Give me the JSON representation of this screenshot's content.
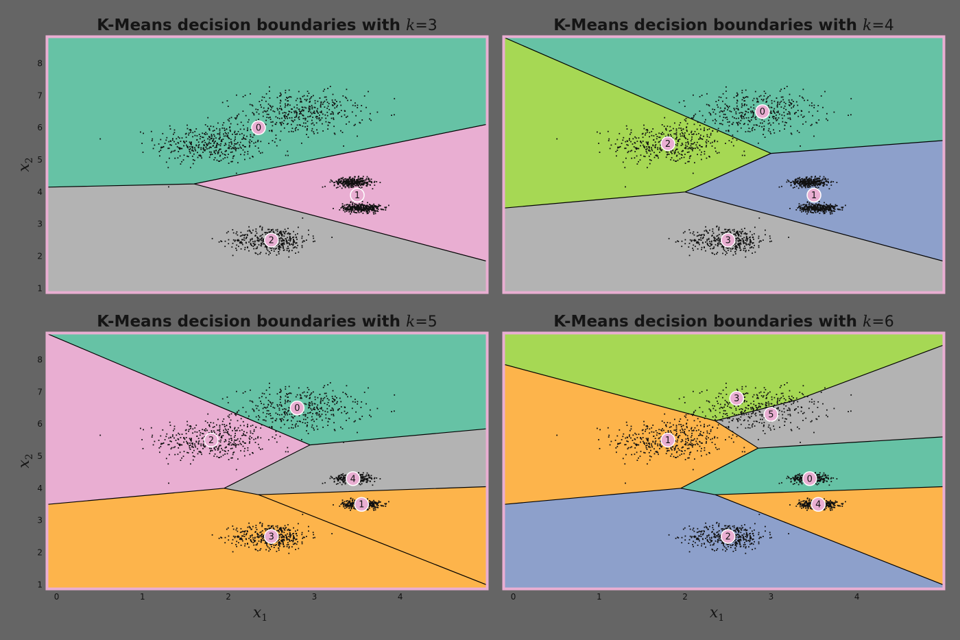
{
  "figure": {
    "background": "#656565",
    "frame_color": "#e9aed2",
    "boundary_color": "#000000",
    "point_color": "#111111"
  },
  "chart_data": [
    {
      "type": "scatter",
      "subtype": "voronoi-decision-boundaries",
      "title": "K-Means decision boundaries with",
      "k_symbol": "k",
      "k_value": "= 3",
      "xlim": [
        -0.1,
        5.0
      ],
      "ylim": [
        0.9,
        8.8
      ],
      "xlabel": "",
      "ylabel_base": "x",
      "ylabel_sub": "2",
      "xticks": [],
      "yticks": [
        "1",
        "2",
        "3",
        "4",
        "5",
        "6",
        "7",
        "8"
      ],
      "centroids": [
        {
          "label": "0",
          "x": 2.35,
          "y": 6.0,
          "color": "#66c2a5"
        },
        {
          "label": "1",
          "x": 3.5,
          "y": 3.9,
          "color": "#e9aed2"
        },
        {
          "label": "2",
          "x": 2.5,
          "y": 2.5,
          "color": "#b3b3b3"
        }
      ]
    },
    {
      "type": "scatter",
      "subtype": "voronoi-decision-boundaries",
      "title": "K-Means decision boundaries with",
      "k_symbol": "k",
      "k_value": "= 4",
      "xlim": [
        -0.1,
        5.0
      ],
      "ylim": [
        0.9,
        8.8
      ],
      "xlabel": "",
      "ylabel_base": "",
      "ylabel_sub": "",
      "xticks": [],
      "yticks": [],
      "centroids": [
        {
          "label": "0",
          "x": 2.9,
          "y": 6.5,
          "color": "#66c2a5"
        },
        {
          "label": "1",
          "x": 3.5,
          "y": 3.9,
          "color": "#8da0cb"
        },
        {
          "label": "2",
          "x": 1.8,
          "y": 5.5,
          "color": "#a6d854"
        },
        {
          "label": "3",
          "x": 2.5,
          "y": 2.5,
          "color": "#b3b3b3"
        }
      ]
    },
    {
      "type": "scatter",
      "subtype": "voronoi-decision-boundaries",
      "title": "K-Means decision boundaries with",
      "k_symbol": "k",
      "k_value": "= 5",
      "xlim": [
        -0.1,
        5.0
      ],
      "ylim": [
        0.9,
        8.8
      ],
      "xlabel_base": "x",
      "xlabel_sub": "1",
      "ylabel_base": "x",
      "ylabel_sub": "2",
      "xticks": [
        "0",
        "1",
        "2",
        "3",
        "4"
      ],
      "yticks": [
        "1",
        "2",
        "3",
        "4",
        "5",
        "6",
        "7",
        "8"
      ],
      "centroids": [
        {
          "label": "0",
          "x": 2.8,
          "y": 6.5,
          "color": "#66c2a5"
        },
        {
          "label": "1",
          "x": 3.55,
          "y": 3.5,
          "color": "#fdb44b"
        },
        {
          "label": "2",
          "x": 1.8,
          "y": 5.5,
          "color": "#e9aed2"
        },
        {
          "label": "3",
          "x": 2.5,
          "y": 2.5,
          "color": "#fdb44b"
        },
        {
          "label": "4",
          "x": 3.45,
          "y": 4.3,
          "color": "#b3b3b3"
        }
      ]
    },
    {
      "type": "scatter",
      "subtype": "voronoi-decision-boundaries",
      "title": "K-Means decision boundaries with",
      "k_symbol": "k",
      "k_value": "= 6",
      "xlim": [
        -0.1,
        5.0
      ],
      "ylim": [
        0.9,
        8.8
      ],
      "xlabel_base": "x",
      "xlabel_sub": "1",
      "ylabel_base": "",
      "ylabel_sub": "",
      "xticks": [
        "0",
        "1",
        "2",
        "3",
        "4"
      ],
      "yticks": [],
      "centroids": [
        {
          "label": "0",
          "x": 3.45,
          "y": 4.3,
          "color": "#66c2a5"
        },
        {
          "label": "1",
          "x": 1.8,
          "y": 5.5,
          "color": "#fdb44b"
        },
        {
          "label": "2",
          "x": 2.5,
          "y": 2.5,
          "color": "#8da0cb"
        },
        {
          "label": "3",
          "x": 2.6,
          "y": 6.8,
          "color": "#a6d854"
        },
        {
          "label": "4",
          "x": 3.55,
          "y": 3.5,
          "color": "#fdb44b"
        },
        {
          "label": "5",
          "x": 3.0,
          "y": 6.3,
          "color": "#b3b3b3"
        }
      ]
    }
  ],
  "blobs": [
    {
      "cx": 1.8,
      "cy": 5.5,
      "sx": 0.32,
      "sy": 0.32,
      "n": 420
    },
    {
      "cx": 2.85,
      "cy": 6.45,
      "sx": 0.36,
      "sy": 0.34,
      "n": 420
    },
    {
      "cx": 2.5,
      "cy": 2.5,
      "sx": 0.22,
      "sy": 0.2,
      "n": 420
    },
    {
      "cx": 3.45,
      "cy": 4.3,
      "sx": 0.11,
      "sy": 0.07,
      "n": 360
    },
    {
      "cx": 3.55,
      "cy": 3.5,
      "sx": 0.11,
      "sy": 0.07,
      "n": 360
    }
  ],
  "regions": [
    [
      {
        "color": "#66c2a5",
        "pts": [
          [
            -0.1,
            8.8
          ],
          [
            5,
            8.8
          ],
          [
            5,
            6.1
          ],
          [
            1.6,
            4.25
          ],
          [
            -0.1,
            4.15
          ]
        ]
      },
      {
        "color": "#e9aed2",
        "pts": [
          [
            1.6,
            4.25
          ],
          [
            5,
            6.1
          ],
          [
            5,
            1.85
          ]
        ]
      },
      {
        "color": "#b3b3b3",
        "pts": [
          [
            -0.1,
            4.15
          ],
          [
            1.6,
            4.25
          ],
          [
            5,
            1.85
          ],
          [
            5,
            0.9
          ],
          [
            -0.1,
            0.9
          ]
        ]
      }
    ],
    [
      {
        "color": "#66c2a5",
        "pts": [
          [
            -0.1,
            8.8
          ],
          [
            5,
            8.8
          ],
          [
            5,
            5.6
          ],
          [
            3.0,
            5.2
          ]
        ]
      },
      {
        "color": "#a6d854",
        "pts": [
          [
            -0.1,
            8.8
          ],
          [
            3.0,
            5.2
          ],
          [
            2.0,
            4.0
          ],
          [
            -0.1,
            3.5
          ]
        ]
      },
      {
        "color": "#8da0cb",
        "pts": [
          [
            2.0,
            4.0
          ],
          [
            3.0,
            5.2
          ],
          [
            5,
            5.6
          ],
          [
            5,
            1.85
          ]
        ]
      },
      {
        "color": "#b3b3b3",
        "pts": [
          [
            -0.1,
            3.5
          ],
          [
            2.0,
            4.0
          ],
          [
            5,
            1.85
          ],
          [
            5,
            0.9
          ],
          [
            -0.1,
            0.9
          ]
        ]
      }
    ],
    [
      {
        "color": "#66c2a5",
        "pts": [
          [
            -0.1,
            8.8
          ],
          [
            5,
            8.8
          ],
          [
            5,
            5.85
          ],
          [
            2.95,
            5.35
          ]
        ]
      },
      {
        "color": "#e9aed2",
        "pts": [
          [
            -0.1,
            8.8
          ],
          [
            2.95,
            5.35
          ],
          [
            1.95,
            4.0
          ],
          [
            -0.1,
            3.5
          ]
        ]
      },
      {
        "color": "#b3b3b3",
        "pts": [
          [
            1.95,
            4.0
          ],
          [
            2.95,
            5.35
          ],
          [
            5,
            5.85
          ],
          [
            5,
            4.05
          ],
          [
            2.35,
            3.8
          ]
        ]
      },
      {
        "color": "#fdb44b",
        "pts": [
          [
            -0.1,
            3.5
          ],
          [
            1.95,
            4.0
          ],
          [
            2.35,
            3.8
          ],
          [
            5,
            4.05
          ],
          [
            5,
            1.0
          ],
          [
            5,
            0.9
          ],
          [
            -0.1,
            0.9
          ]
        ]
      }
    ],
    [
      {
        "color": "#a6d854",
        "pts": [
          [
            -0.1,
            8.8
          ],
          [
            5,
            8.8
          ],
          [
            5,
            8.45
          ],
          [
            3.3,
            6.75
          ],
          [
            2.35,
            6.1
          ],
          [
            -0.1,
            7.85
          ]
        ]
      },
      {
        "color": "#b3b3b3",
        "pts": [
          [
            2.35,
            6.1
          ],
          [
            3.3,
            6.75
          ],
          [
            5,
            8.45
          ],
          [
            5,
            5.6
          ],
          [
            2.85,
            5.25
          ]
        ]
      },
      {
        "color": "#fdb44b",
        "pts": [
          [
            -0.1,
            7.85
          ],
          [
            2.35,
            6.1
          ],
          [
            2.85,
            5.25
          ],
          [
            1.95,
            4.0
          ],
          [
            -0.1,
            3.5
          ]
        ]
      },
      {
        "color": "#66c2a5",
        "pts": [
          [
            1.95,
            4.0
          ],
          [
            2.85,
            5.25
          ],
          [
            5,
            5.6
          ],
          [
            5,
            4.05
          ],
          [
            2.35,
            3.8
          ]
        ]
      },
      {
        "color": "#8da0cb",
        "pts": [
          [
            -0.1,
            3.5
          ],
          [
            1.95,
            4.0
          ],
          [
            2.35,
            3.8
          ],
          [
            5,
            1.0
          ],
          [
            5,
            0.9
          ],
          [
            -0.1,
            0.9
          ]
        ]
      }
    ]
  ],
  "extra_regions": [
    [],
    [],
    [
      {
        "color": "#fdb44b",
        "pts": [
          [
            2.35,
            3.8
          ],
          [
            5,
            4.05
          ],
          [
            5,
            1.0
          ]
        ]
      }
    ],
    [
      {
        "color": "#fdb44b",
        "pts": [
          [
            2.35,
            3.8
          ],
          [
            5,
            4.05
          ],
          [
            5,
            1.0
          ]
        ]
      }
    ]
  ],
  "boundaries": [
    [
      [
        [
          -0.1,
          4.15
        ],
        [
          1.6,
          4.25
        ],
        [
          5,
          6.1
        ]
      ],
      [
        [
          1.6,
          4.25
        ],
        [
          5,
          1.85
        ]
      ]
    ],
    [
      [
        [
          -0.1,
          8.8
        ],
        [
          3.0,
          5.2
        ],
        [
          2.0,
          4.0
        ],
        [
          -0.1,
          3.5
        ]
      ],
      [
        [
          3.0,
          5.2
        ],
        [
          5,
          5.6
        ]
      ],
      [
        [
          2.0,
          4.0
        ],
        [
          5,
          1.85
        ]
      ]
    ],
    [
      [
        [
          -0.1,
          8.8
        ],
        [
          2.95,
          5.35
        ],
        [
          1.95,
          4.0
        ],
        [
          -0.1,
          3.5
        ]
      ],
      [
        [
          2.95,
          5.35
        ],
        [
          5,
          5.85
        ]
      ],
      [
        [
          1.95,
          4.0
        ],
        [
          2.35,
          3.8
        ],
        [
          5,
          4.05
        ]
      ],
      [
        [
          2.35,
          3.8
        ],
        [
          5,
          1.0
        ]
      ]
    ],
    [
      [
        [
          -0.1,
          7.85
        ],
        [
          2.35,
          6.1
        ],
        [
          3.3,
          6.75
        ],
        [
          5,
          8.45
        ]
      ],
      [
        [
          2.35,
          6.1
        ],
        [
          2.85,
          5.25
        ],
        [
          1.95,
          4.0
        ],
        [
          -0.1,
          3.5
        ]
      ],
      [
        [
          2.85,
          5.25
        ],
        [
          5,
          5.6
        ]
      ],
      [
        [
          1.95,
          4.0
        ],
        [
          2.35,
          3.8
        ],
        [
          5,
          4.05
        ]
      ],
      [
        [
          2.35,
          3.8
        ],
        [
          5,
          1.0
        ]
      ]
    ]
  ]
}
